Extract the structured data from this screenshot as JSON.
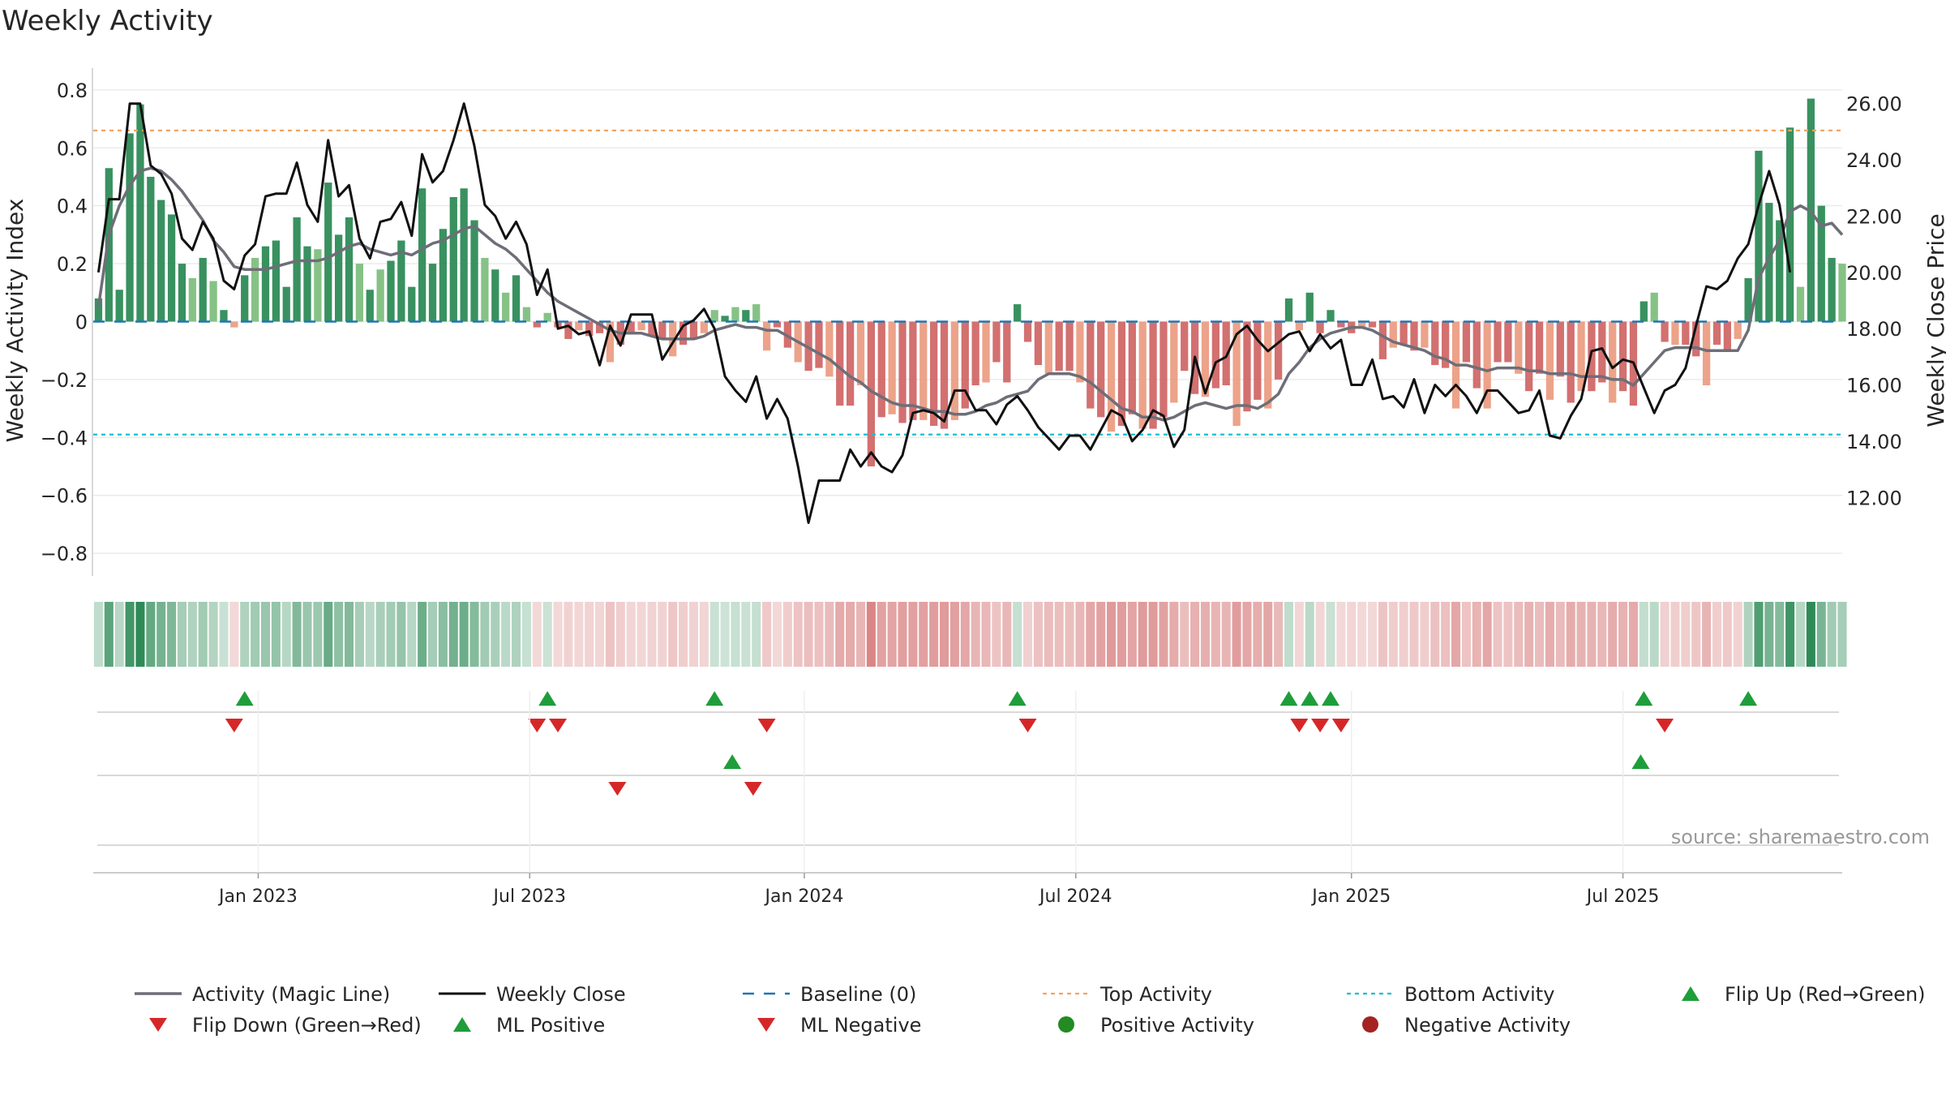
{
  "chart_data": {
    "type": "bar",
    "title": "Weekly Activity",
    "ylabel_left": "Weekly Activity Index",
    "ylabel_right": "Weekly Close Price",
    "ylim_left": [
      -0.85,
      0.85
    ],
    "ylim_right": [
      9.5,
      27.0
    ],
    "yticks_left": [
      0.8,
      0.6,
      0.4,
      0.2,
      0,
      -0.2,
      -0.4,
      -0.6,
      -0.8
    ],
    "yticks_left_labels": [
      "0.8",
      "0.6",
      "0.4",
      "0.2",
      "0",
      "−0.2",
      "−0.4",
      "−0.6",
      "−0.8"
    ],
    "yticks_right": [
      26,
      24,
      22,
      20,
      18,
      16,
      14,
      12
    ],
    "yticks_right_labels": [
      "26.00",
      "24.00",
      "22.00",
      "20.00",
      "18.00",
      "16.00",
      "14.00",
      "12.00"
    ],
    "x_tick_labels": [
      "Jan 2023",
      "Jul 2023",
      "Jan 2024",
      "Jul 2024",
      "Jan 2025",
      "Jul 2025"
    ],
    "x_tick_weeks": [
      15.3,
      41.3,
      67.6,
      93.6,
      120.0,
      146.0
    ],
    "top_activity": 0.66,
    "bottom_activity": -0.39,
    "activity": [
      0.08,
      0.53,
      0.11,
      0.65,
      0.75,
      0.5,
      0.42,
      0.37,
      0.2,
      0.15,
      0.22,
      0.14,
      0.04,
      -0.02,
      0.16,
      0.22,
      0.26,
      0.28,
      0.12,
      0.36,
      0.26,
      0.25,
      0.48,
      0.3,
      0.36,
      0.2,
      0.11,
      0.18,
      0.21,
      0.28,
      0.12,
      0.46,
      0.2,
      0.32,
      0.43,
      0.46,
      0.35,
      0.22,
      0.18,
      0.1,
      0.16,
      0.05,
      -0.02,
      0.03,
      -0.02,
      -0.06,
      -0.03,
      -0.05,
      -0.04,
      -0.14,
      -0.08,
      -0.04,
      -0.03,
      -0.05,
      -0.06,
      -0.12,
      -0.08,
      -0.06,
      -0.04,
      0.04,
      0.02,
      0.05,
      0.04,
      0.06,
      -0.1,
      -0.02,
      -0.09,
      -0.14,
      -0.17,
      -0.16,
      -0.19,
      -0.29,
      -0.29,
      -0.22,
      -0.5,
      -0.33,
      -0.32,
      -0.35,
      -0.34,
      -0.34,
      -0.36,
      -0.37,
      -0.34,
      -0.3,
      -0.22,
      -0.21,
      -0.14,
      -0.21,
      0.06,
      -0.07,
      -0.15,
      -0.18,
      -0.17,
      -0.17,
      -0.21,
      -0.3,
      -0.33,
      -0.38,
      -0.36,
      -0.32,
      -0.37,
      -0.37,
      -0.33,
      -0.28,
      -0.17,
      -0.25,
      -0.26,
      -0.23,
      -0.22,
      -0.36,
      -0.31,
      -0.27,
      -0.3,
      -0.2,
      0.08,
      -0.03,
      0.1,
      -0.04,
      0.04,
      -0.02,
      -0.04,
      -0.02,
      -0.02,
      -0.13,
      -0.09,
      -0.08,
      -0.1,
      -0.09,
      -0.15,
      -0.16,
      -0.3,
      -0.14,
      -0.23,
      -0.3,
      -0.14,
      -0.14,
      -0.18,
      -0.24,
      -0.18,
      -0.27,
      -0.19,
      -0.28,
      -0.24,
      -0.24,
      -0.21,
      -0.28,
      -0.24,
      -0.29,
      0.07,
      0.1,
      -0.07,
      -0.08,
      -0.08,
      -0.12,
      -0.22,
      -0.08,
      -0.1,
      -0.06,
      0.15,
      0.59,
      0.41,
      0.35,
      0.67,
      0.12,
      0.77,
      0.4,
      0.22,
      0.2
    ],
    "magic_line": [
      0.05,
      0.3,
      0.4,
      0.47,
      0.52,
      0.53,
      0.52,
      0.49,
      0.45,
      0.4,
      0.35,
      0.28,
      0.24,
      0.19,
      0.18,
      0.18,
      0.18,
      0.19,
      0.2,
      0.21,
      0.21,
      0.21,
      0.22,
      0.24,
      0.26,
      0.27,
      0.25,
      0.24,
      0.23,
      0.24,
      0.23,
      0.25,
      0.27,
      0.28,
      0.3,
      0.32,
      0.33,
      0.3,
      0.27,
      0.25,
      0.22,
      0.18,
      0.14,
      0.1,
      0.07,
      0.05,
      0.03,
      0.01,
      -0.01,
      -0.03,
      -0.04,
      -0.04,
      -0.04,
      -0.05,
      -0.06,
      -0.06,
      -0.06,
      -0.06,
      -0.05,
      -0.03,
      -0.02,
      -0.01,
      -0.02,
      -0.02,
      -0.03,
      -0.03,
      -0.05,
      -0.07,
      -0.09,
      -0.11,
      -0.13,
      -0.16,
      -0.19,
      -0.21,
      -0.24,
      -0.26,
      -0.28,
      -0.29,
      -0.29,
      -0.3,
      -0.31,
      -0.31,
      -0.32,
      -0.32,
      -0.31,
      -0.29,
      -0.28,
      -0.26,
      -0.25,
      -0.24,
      -0.2,
      -0.18,
      -0.18,
      -0.18,
      -0.19,
      -0.21,
      -0.24,
      -0.27,
      -0.3,
      -0.31,
      -0.33,
      -0.33,
      -0.34,
      -0.33,
      -0.31,
      -0.29,
      -0.28,
      -0.29,
      -0.3,
      -0.29,
      -0.29,
      -0.3,
      -0.28,
      -0.25,
      -0.18,
      -0.14,
      -0.09,
      -0.06,
      -0.04,
      -0.03,
      -0.02,
      -0.02,
      -0.03,
      -0.05,
      -0.07,
      -0.08,
      -0.09,
      -0.1,
      -0.12,
      -0.13,
      -0.15,
      -0.15,
      -0.16,
      -0.17,
      -0.16,
      -0.16,
      -0.16,
      -0.17,
      -0.17,
      -0.18,
      -0.18,
      -0.18,
      -0.19,
      -0.19,
      -0.19,
      -0.2,
      -0.2,
      -0.22,
      -0.18,
      -0.14,
      -0.1,
      -0.09,
      -0.09,
      -0.09,
      -0.1,
      -0.1,
      -0.1,
      -0.1,
      -0.03,
      0.15,
      0.22,
      0.28,
      0.38,
      0.4,
      0.38,
      0.33,
      0.34,
      0.3
    ],
    "weekly_close": [
      20.0,
      22.6,
      22.6,
      26.0,
      26.0,
      23.8,
      23.5,
      22.8,
      21.2,
      20.8,
      21.8,
      21.2,
      19.7,
      19.4,
      20.6,
      21.0,
      22.7,
      22.8,
      22.8,
      23.9,
      22.4,
      21.8,
      24.7,
      22.7,
      23.1,
      21.2,
      20.5,
      21.8,
      21.9,
      22.5,
      21.3,
      24.2,
      23.2,
      23.6,
      24.7,
      26.0,
      24.5,
      22.4,
      22.0,
      21.2,
      21.8,
      21.0,
      19.2,
      20.1,
      18.0,
      18.1,
      17.8,
      17.9,
      16.7,
      18.1,
      17.4,
      18.5,
      18.5,
      18.5,
      16.9,
      17.5,
      18.1,
      18.3,
      18.7,
      18.0,
      16.3,
      15.8,
      15.4,
      16.3,
      14.8,
      15.5,
      14.8,
      13.1,
      11.1,
      12.6,
      12.6,
      12.6,
      13.7,
      13.1,
      13.6,
      13.1,
      12.9,
      13.5,
      15.0,
      15.1,
      15.0,
      14.7,
      15.8,
      15.8,
      15.1,
      15.1,
      14.6,
      15.3,
      15.6,
      15.1,
      14.5,
      14.1,
      13.7,
      14.2,
      14.2,
      13.7,
      14.4,
      15.1,
      14.9,
      14.0,
      14.4,
      15.1,
      14.9,
      13.8,
      14.4,
      17.0,
      15.7,
      16.8,
      17.0,
      17.8,
      18.1,
      17.6,
      17.2,
      17.5,
      17.8,
      17.9,
      17.2,
      17.8,
      17.3,
      17.6,
      16.0,
      16.0,
      16.9,
      15.5,
      15.6,
      15.2,
      16.2,
      15.0,
      16.0,
      15.6,
      16.0,
      15.6,
      15.0,
      15.8,
      15.8,
      15.4,
      15.0,
      15.1,
      15.8,
      14.2,
      14.1,
      14.9,
      15.5,
      17.2,
      17.3,
      16.6,
      16.9,
      16.8,
      15.9,
      15.0,
      15.8,
      16.0,
      16.6,
      18.1,
      19.5,
      19.4,
      19.7,
      20.5,
      21.0,
      22.4,
      23.6,
      22.4,
      20.0
    ],
    "ml_row_up_weeks": [
      60.7,
      147.7
    ],
    "ml_row_down_weeks": [
      49.7,
      62.7
    ],
    "legend": [
      "Activity (Magic Line)",
      "Weekly Close",
      "Baseline (0)",
      "Top Activity",
      "Bottom Activity",
      "Flip Up (Red→Green)",
      "Flip Down (Green→Red)",
      "ML Positive",
      "ML Negative",
      "Positive Activity",
      "Negative Activity"
    ],
    "source": "source: sharemaestro.com",
    "colors": {
      "pos_strong": "#2e8b57",
      "pos_weak": "#7fbf7f",
      "neg_strong": "#cd5c5c",
      "neg_weak": "#e9967a",
      "magic_line": "#6e6e78",
      "close": "#111111",
      "baseline": "#1f77b4",
      "top": "#f4a460",
      "bottom": "#17becf",
      "marker_up": "#1e9e3a",
      "marker_down": "#d62728",
      "positive_dot": "#228b22",
      "negative_dot": "#a52222"
    }
  }
}
